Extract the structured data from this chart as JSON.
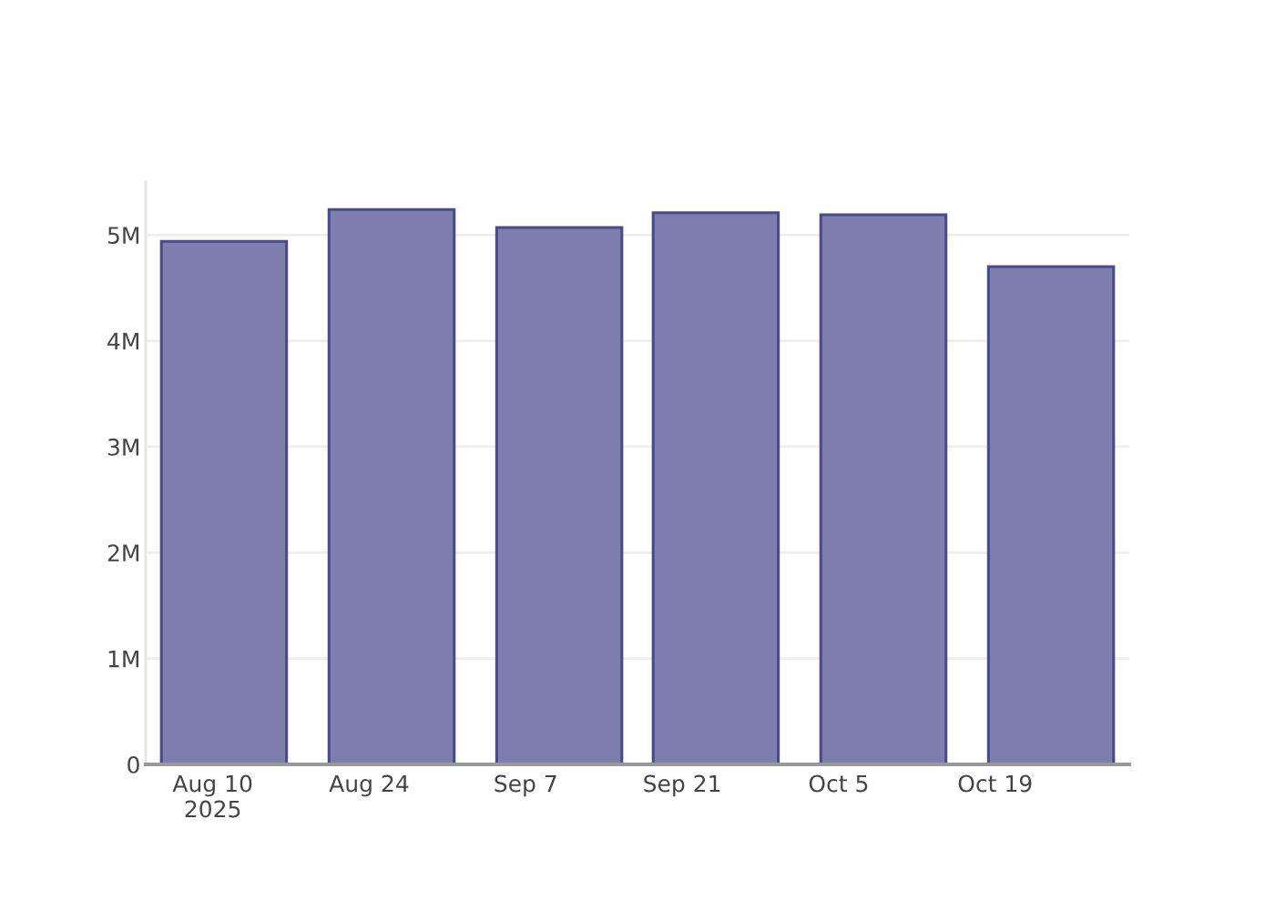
{
  "chart_data": {
    "type": "bar",
    "x": [
      "2025-08-11",
      "2025-08-26",
      "2025-09-10",
      "2025-09-24",
      "2025-10-09",
      "2025-10-24"
    ],
    "values": [
      4940000,
      5240000,
      5070000,
      5210000,
      5190000,
      4700000
    ],
    "color": "#7e7eae",
    "xlim": [
      "2025-08-04",
      "2025-10-31"
    ],
    "xticks": [
      {
        "value": "2025-08-10",
        "label": "Aug 10\n2025"
      },
      {
        "value": "2025-08-24",
        "label": "Aug 24"
      },
      {
        "value": "2025-09-07",
        "label": "Sep 7"
      },
      {
        "value": "2025-09-21",
        "label": "Sep 21"
      },
      {
        "value": "2025-10-05",
        "label": "Oct 5"
      },
      {
        "value": "2025-10-19",
        "label": "Oct 19"
      }
    ],
    "ylim": [
      0,
      5500000
    ],
    "yticks": [
      0,
      {
        "value": 1000000,
        "label": "1M"
      },
      {
        "value": 2000000,
        "label": "2M"
      },
      {
        "value": 3000000,
        "label": "3M"
      },
      {
        "value": 4000000,
        "label": "4M"
      },
      {
        "value": 5000000,
        "label": "5M"
      }
    ],
    "grid": "y"
  }
}
